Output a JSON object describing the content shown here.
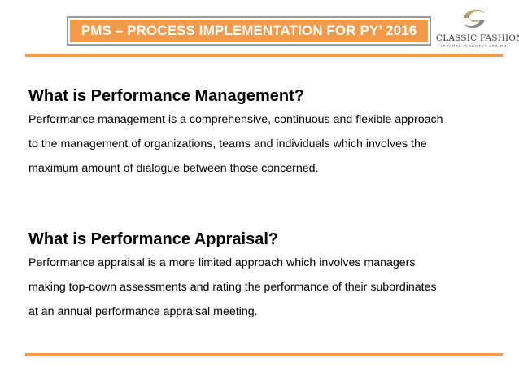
{
  "header": {
    "title": "PMS – PROCESS IMPLEMENTATION FOR PY’ 2016",
    "logo": {
      "icon": "swirl-logo-icon",
      "name": "CLASSIC FASHION",
      "tagline": "APPAREL INDUSTRY LTD CO."
    }
  },
  "sections": [
    {
      "heading": "What is Performance Management?",
      "lines": [
        "Performance management is a comprehensive, continuous and flexible approach",
        "to the management of organizations, teams and individuals which involves the",
        "maximum amount of dialogue between those concerned."
      ]
    },
    {
      "heading": "What is Performance Appraisal?",
      "lines": [
        "Performance appraisal is a more limited approach which involves managers",
        "making top-down assessments and rating the performance of their subordinates",
        "at an annual performance appraisal meeting."
      ]
    }
  ],
  "colors": {
    "accent": "#f29a4a",
    "banner_text": "#ffffff"
  }
}
